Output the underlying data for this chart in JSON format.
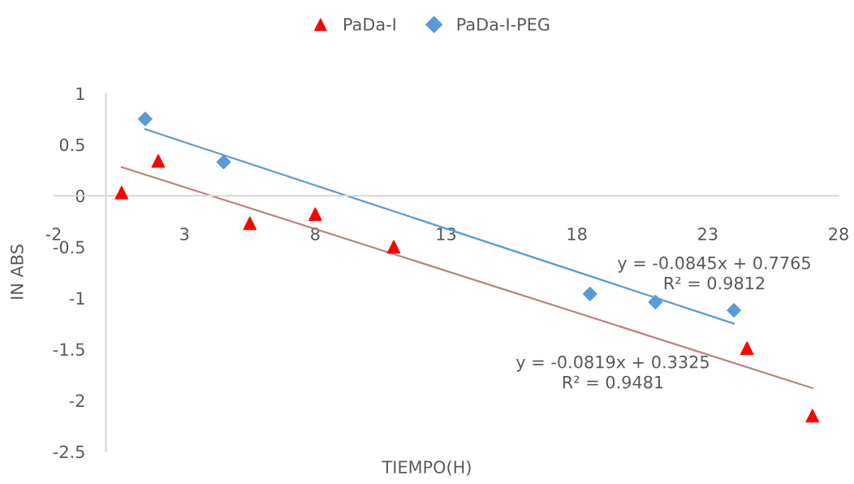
{
  "chart_data": {
    "type": "scatter",
    "xlabel": "TIEMPO(H)",
    "ylabel": "IN ABS",
    "xlim": [
      -2,
      28
    ],
    "xticks": [
      -2,
      3,
      8,
      13,
      18,
      23,
      28
    ],
    "ylim": [
      -2.5,
      1
    ],
    "yticks": [
      -2.5,
      -2,
      -1.5,
      -1,
      -0.5,
      0,
      0.5,
      1
    ],
    "grid": false,
    "legend": "top",
    "series": [
      {
        "name": "PaDa-I",
        "color": "#ff0000",
        "marker": "triangle",
        "x": [
          0.6,
          2,
          5.5,
          8,
          11,
          24.5,
          27
        ],
        "values": [
          0.03,
          0.34,
          -0.27,
          -0.18,
          -0.5,
          -1.49,
          -2.15
        ]
      },
      {
        "name": "PaDa-I-PEG",
        "color": "#5b9bd5",
        "marker": "diamond",
        "x": [
          1.5,
          4.5,
          18.5,
          21,
          24
        ],
        "values": [
          0.75,
          0.33,
          -0.96,
          -1.04,
          -1.12
        ]
      },
      {
        "type": "line",
        "color": "#5b9bd5",
        "marker": "none",
        "x": [
          1.5,
          24
        ],
        "values": [
          0.65,
          -1.25
        ]
      },
      {
        "type": "line",
        "color": "#b5867f",
        "marker": "none",
        "x": [
          0.6,
          27
        ],
        "values": [
          0.28,
          -1.88
        ]
      }
    ],
    "annotations": [
      "y = -0.0845x + 0.7765\nR² = 0.9812",
      "y = -0.0819x + 0.3325\nR² = 0.9481"
    ]
  }
}
